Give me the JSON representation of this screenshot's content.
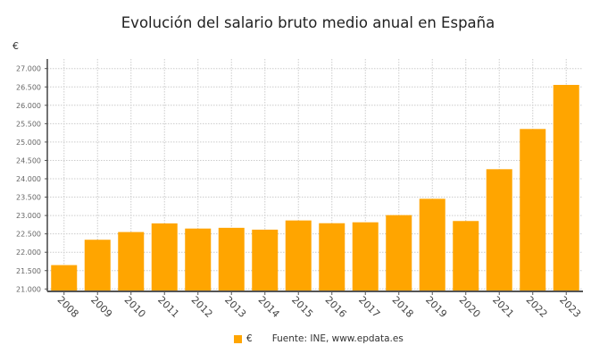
{
  "chart_data": {
    "type": "bar",
    "title": "Evolución del salario bruto medio anual en España",
    "ylabel": "€",
    "xlabel": "",
    "categories": [
      "2008",
      "2009",
      "2010",
      "2011",
      "2012",
      "2013",
      "2014",
      "2015",
      "2016",
      "2017",
      "2018",
      "2019",
      "2020",
      "2021",
      "2022",
      "2023"
    ],
    "series": [
      {
        "name": "€",
        "values": [
          21650,
          22340,
          22550,
          22785,
          22645,
          22665,
          22615,
          22865,
          22790,
          22815,
          23010,
          23455,
          22850,
          24260,
          25355,
          26555
        ]
      }
    ],
    "ylim": [
      21000,
      27000
    ],
    "yticks": [
      21000,
      21500,
      22000,
      22500,
      23000,
      23500,
      24000,
      24500,
      25000,
      25500,
      26000,
      26500,
      27000
    ],
    "ytick_labels": [
      "21.000",
      "21.500",
      "22.000",
      "22.500",
      "23.000",
      "23.500",
      "24.000",
      "24.500",
      "25.000",
      "25.500",
      "26.000",
      "26.500",
      "27.000"
    ],
    "grid": true,
    "legend_position": "bottom-center",
    "color": "#FFA500"
  },
  "source": "Fuente: INE, www.epdata.es"
}
